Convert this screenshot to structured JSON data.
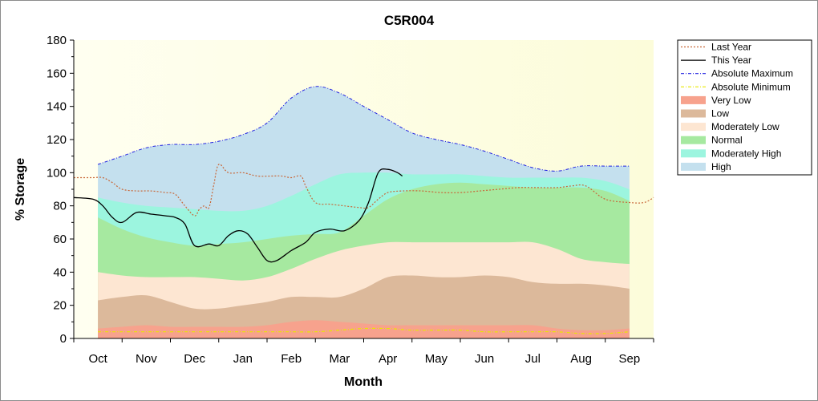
{
  "chart_data": {
    "type": "area",
    "title": "C5R004",
    "xlabel": "Month",
    "ylabel": "% Storage",
    "ylim": [
      0,
      180
    ],
    "yticks": [
      0,
      20,
      40,
      60,
      80,
      100,
      120,
      140,
      160,
      180
    ],
    "xlim": [
      0,
      12
    ],
    "categories": [
      "Oct",
      "Nov",
      "Dec",
      "Jan",
      "Feb",
      "Mar",
      "Apr",
      "May",
      "Jun",
      "Jul",
      "Aug",
      "Sep"
    ],
    "grid": false,
    "legend_position": "right",
    "band_x": [
      0.5,
      1,
      1.5,
      2,
      2.5,
      3,
      3.5,
      4,
      4.5,
      5,
      5.5,
      6,
      6.5,
      7,
      7.5,
      8,
      8.5,
      9,
      9.5,
      10,
      10.5,
      11,
      11.5
    ],
    "bands": [
      {
        "name": "Very Low",
        "color": "#f7a28d",
        "values": [
          6,
          7,
          8,
          7,
          7,
          7,
          7,
          8,
          10,
          11,
          10,
          9,
          8,
          8,
          8,
          8,
          8,
          8,
          8,
          6,
          5,
          5,
          6
        ]
      },
      {
        "name": "Low",
        "color": "#dcb99b",
        "values": [
          23,
          25,
          26,
          22,
          18,
          18,
          20,
          22,
          25,
          25,
          25,
          30,
          37,
          38,
          37,
          37,
          38,
          37,
          34,
          33,
          33,
          32,
          30
        ]
      },
      {
        "name": "Moderately Low",
        "color": "#fde6d2",
        "values": [
          40,
          38,
          37,
          37,
          37,
          36,
          35,
          37,
          42,
          48,
          53,
          56,
          58,
          58,
          58,
          58,
          58,
          58,
          58,
          54,
          48,
          46,
          45
        ]
      },
      {
        "name": "Normal",
        "color": "#a6e9a0",
        "values": [
          73,
          66,
          61,
          58,
          56,
          57,
          58,
          60,
          62,
          63,
          64,
          74,
          84,
          90,
          93,
          94,
          93,
          92,
          91,
          91,
          91,
          89,
          83
        ]
      },
      {
        "name": "Moderately High",
        "color": "#9cf5df",
        "values": [
          85,
          82,
          80,
          79,
          78,
          77,
          77,
          80,
          86,
          93,
          99,
          100,
          100,
          99,
          99,
          99,
          98,
          97,
          97,
          97,
          97,
          95,
          90
        ]
      },
      {
        "name": "High",
        "color": "#c4e0ee",
        "values": [
          105,
          110,
          115,
          117,
          117,
          119,
          123,
          130,
          145,
          152,
          148,
          140,
          132,
          124,
          120,
          117,
          113,
          108,
          103,
          101,
          104,
          104,
          104
        ]
      }
    ],
    "series": [
      {
        "name": "Last Year",
        "color": "#c8683a",
        "style": "dotted",
        "x": [
          0,
          0.2,
          0.4,
          0.6,
          0.8,
          1.0,
          1.3,
          1.6,
          1.9,
          2.1,
          2.3,
          2.5,
          2.6,
          2.7,
          2.8,
          2.9,
          3.0,
          3.2,
          3.5,
          3.8,
          4.1,
          4.3,
          4.5,
          4.7,
          4.8,
          5.0,
          5.3,
          5.6,
          5.9,
          6.1,
          6.3,
          6.5,
          6.8,
          7.2,
          7.6,
          8.0,
          8.4,
          8.8,
          9.2,
          9.6,
          10.0,
          10.3,
          10.6,
          11.0,
          11.5,
          11.8,
          12.0
        ],
        "y": [
          97,
          97,
          97,
          97,
          94,
          90,
          89,
          89,
          88,
          87,
          80,
          74,
          78,
          80,
          79,
          93,
          105,
          100,
          100,
          98,
          98,
          98,
          97,
          98,
          92,
          82,
          81,
          80,
          79,
          79,
          84,
          88,
          89,
          89,
          88,
          88,
          89,
          90,
          91,
          91,
          91,
          92,
          92,
          84,
          82,
          82,
          85
        ]
      },
      {
        "name": "This Year",
        "color": "#000000",
        "style": "solid",
        "x": [
          0,
          0.4,
          0.6,
          0.8,
          1.0,
          1.3,
          1.6,
          1.9,
          2.1,
          2.3,
          2.5,
          2.8,
          3.0,
          3.2,
          3.4,
          3.6,
          3.8,
          4.0,
          4.2,
          4.5,
          4.8,
          5.0,
          5.3,
          5.6,
          5.9,
          6.1,
          6.3,
          6.5,
          6.7,
          6.8
        ],
        "y": [
          85,
          84,
          80,
          73,
          70,
          76,
          75,
          74,
          73,
          69,
          56,
          57,
          56,
          62,
          65,
          63,
          55,
          47,
          47,
          53,
          58,
          64,
          66,
          65,
          71,
          82,
          100,
          102,
          100,
          98
        ]
      },
      {
        "name": "Absolute Maximum",
        "color": "#2020e0",
        "style": "dashdot"
      },
      {
        "name": "Absolute Minimum",
        "color": "#e8e800",
        "style": "dashdot",
        "x": [
          0.5,
          1,
          1.5,
          2,
          2.5,
          3,
          3.5,
          4,
          4.5,
          5,
          5.5,
          6,
          6.5,
          7,
          7.5,
          8,
          8.5,
          9,
          9.5,
          10,
          10.5,
          11,
          11.5
        ],
        "y": [
          4,
          4,
          4,
          4,
          4,
          4,
          4,
          4,
          4,
          4,
          5,
          6,
          6,
          5,
          5,
          5,
          4,
          4,
          4,
          4,
          3,
          3,
          4
        ]
      }
    ],
    "legend": [
      {
        "label": "Last Year",
        "kind": "line",
        "color": "#c8683a",
        "dash": "2,2"
      },
      {
        "label": "This Year",
        "kind": "line",
        "color": "#000000",
        "dash": ""
      },
      {
        "label": "Absolute Maximum",
        "kind": "line",
        "color": "#2020e0",
        "dash": "4,2,1,2"
      },
      {
        "label": "Absolute Minimum",
        "kind": "line",
        "color": "#e8e800",
        "dash": "4,2,1,2"
      },
      {
        "label": "Very Low",
        "kind": "swatch",
        "color": "#f7a28d"
      },
      {
        "label": "Low",
        "kind": "swatch",
        "color": "#dcb99b"
      },
      {
        "label": "Moderately Low",
        "kind": "swatch",
        "color": "#fde6d2"
      },
      {
        "label": "Normal",
        "kind": "swatch",
        "color": "#a6e9a0"
      },
      {
        "label": "Moderately High",
        "kind": "swatch",
        "color": "#9cf5df"
      },
      {
        "label": "High",
        "kind": "swatch",
        "color": "#c4e0ee"
      }
    ],
    "plot_background": "#fdfde6"
  }
}
